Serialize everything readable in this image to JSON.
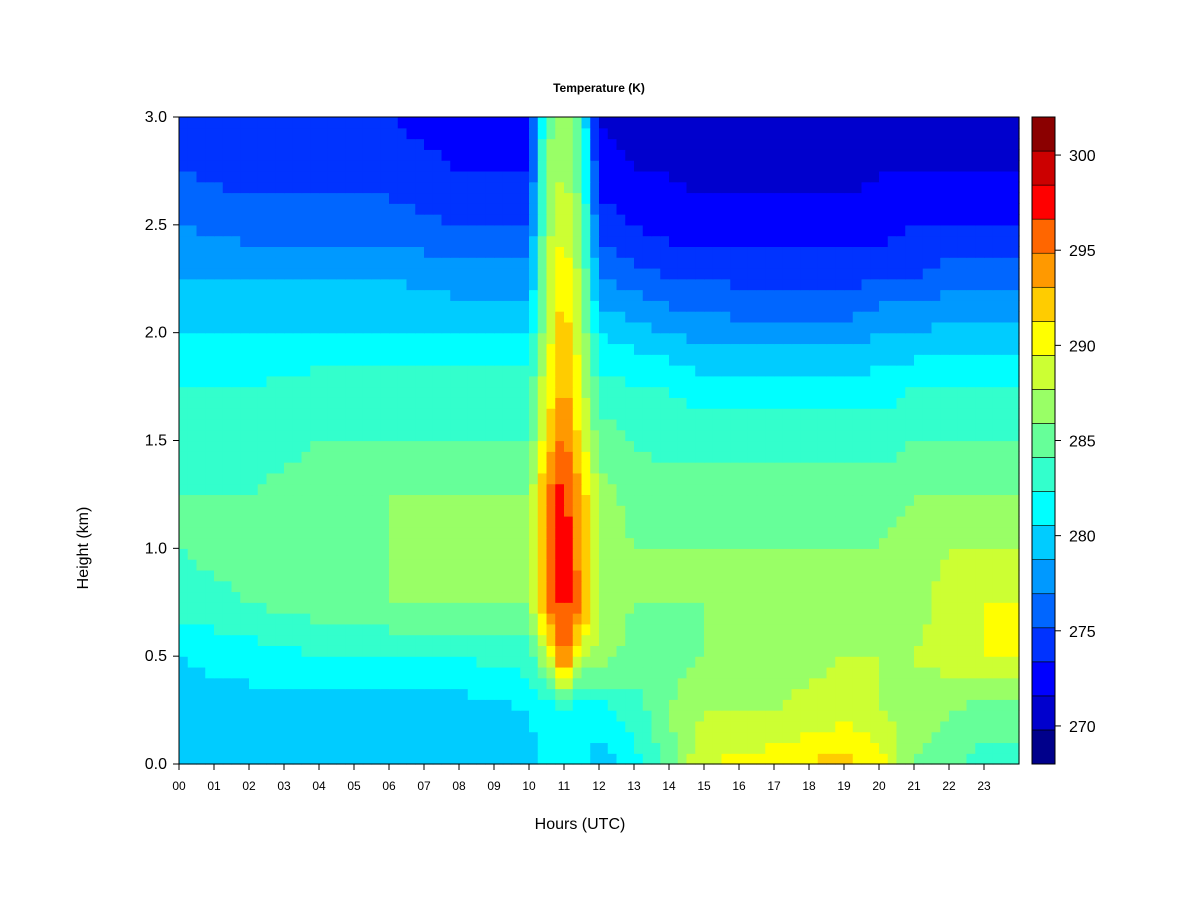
{
  "chart_data": {
    "type": "heatmap",
    "title": "Temperature (K)",
    "xlabel": "Hours (UTC)",
    "ylabel": "Height (km)",
    "xlim": [
      0,
      24
    ],
    "ylim": [
      0.0,
      3.0
    ],
    "x_ticks": [
      "00",
      "01",
      "02",
      "03",
      "04",
      "05",
      "06",
      "07",
      "08",
      "09",
      "10",
      "11",
      "12",
      "13",
      "14",
      "15",
      "16",
      "17",
      "18",
      "19",
      "20",
      "21",
      "22",
      "23"
    ],
    "y_ticks": [
      "0.0",
      "0.5",
      "1.0",
      "1.5",
      "2.0",
      "2.5",
      "3.0"
    ],
    "colorbar": {
      "min": 268,
      "max": 302,
      "step": 2,
      "tick_values": [
        270,
        275,
        280,
        285,
        290,
        295,
        300
      ],
      "tick_labels": [
        "270",
        "275",
        "280",
        "285",
        "290",
        "295",
        "300"
      ],
      "colors": [
        "#00008b",
        "#0000cd",
        "#0000ff",
        "#0033ff",
        "#0066ff",
        "#0099ff",
        "#00ccff",
        "#00ffff",
        "#33ffcc",
        "#66ff99",
        "#99ff66",
        "#ccff33",
        "#ffff00",
        "#ffcc00",
        "#ff9900",
        "#ff6600",
        "#ff0000",
        "#cc0000",
        "#8b0000"
      ]
    },
    "heights_km": [
      0.0,
      0.25,
      0.5,
      0.75,
      1.0,
      1.25,
      1.5,
      1.75,
      2.0,
      2.25,
      2.5,
      2.75,
      3.0
    ],
    "hours": [
      0,
      2,
      4,
      6,
      8,
      10,
      10.5,
      11,
      11.5,
      12,
      13,
      14,
      15,
      17,
      19,
      20,
      21,
      22,
      23,
      24
    ],
    "temperature_k": [
      [
        280,
        280,
        280,
        280,
        280,
        281,
        283,
        283,
        283,
        281,
        283,
        287,
        292,
        293,
        295,
        293,
        288,
        287,
        285,
        285
      ],
      [
        281,
        281,
        281,
        281,
        281,
        282,
        283,
        283,
        283,
        283,
        285,
        288,
        290,
        290,
        291,
        290,
        289,
        288,
        287,
        287
      ],
      [
        282,
        283,
        284,
        284,
        284,
        285,
        290,
        300,
        290,
        289,
        287,
        287,
        288,
        289,
        290,
        290,
        290,
        291,
        292,
        292
      ],
      [
        285,
        286,
        287,
        288,
        288,
        288,
        298,
        301,
        298,
        290,
        288,
        288,
        288,
        289,
        289,
        289,
        289,
        291,
        292,
        292
      ],
      [
        286,
        287,
        288,
        288,
        288,
        288,
        298,
        302,
        296,
        290,
        288,
        288,
        288,
        288,
        288,
        288,
        289,
        290,
        290,
        290
      ],
      [
        286,
        286,
        287,
        288,
        288,
        288,
        298,
        301,
        296,
        289,
        287,
        287,
        287,
        287,
        287,
        287,
        288,
        288,
        288,
        288
      ],
      [
        285,
        285,
        286,
        286,
        286,
        286,
        294,
        299,
        293,
        287,
        286,
        285,
        285,
        285,
        285,
        285,
        286,
        286,
        286,
        286
      ],
      [
        284,
        284,
        285,
        285,
        285,
        285,
        292,
        297,
        291,
        285,
        284,
        284,
        283,
        283,
        283,
        283,
        284,
        284,
        284,
        284
      ],
      [
        282,
        282,
        282,
        282,
        282,
        282,
        290,
        296,
        290,
        282,
        281,
        280,
        279,
        279,
        279,
        280,
        280,
        281,
        281,
        281
      ],
      [
        280,
        280,
        280,
        280,
        279,
        279,
        290,
        294,
        289,
        278,
        277,
        276,
        276,
        275,
        275,
        276,
        276,
        277,
        277,
        277
      ],
      [
        278,
        277,
        277,
        277,
        276,
        276,
        289,
        292,
        288,
        275,
        274,
        273,
        273,
        273,
        273,
        273,
        274,
        274,
        274,
        274
      ],
      [
        276,
        275,
        275,
        275,
        274,
        274,
        288,
        290,
        286,
        273,
        272,
        272,
        271,
        271,
        271,
        272,
        272,
        272,
        272,
        272
      ],
      [
        275,
        274,
        274,
        274,
        273,
        273,
        287,
        289,
        285,
        272,
        271,
        271,
        270,
        270,
        270,
        271,
        271,
        271,
        271,
        271
      ]
    ]
  }
}
